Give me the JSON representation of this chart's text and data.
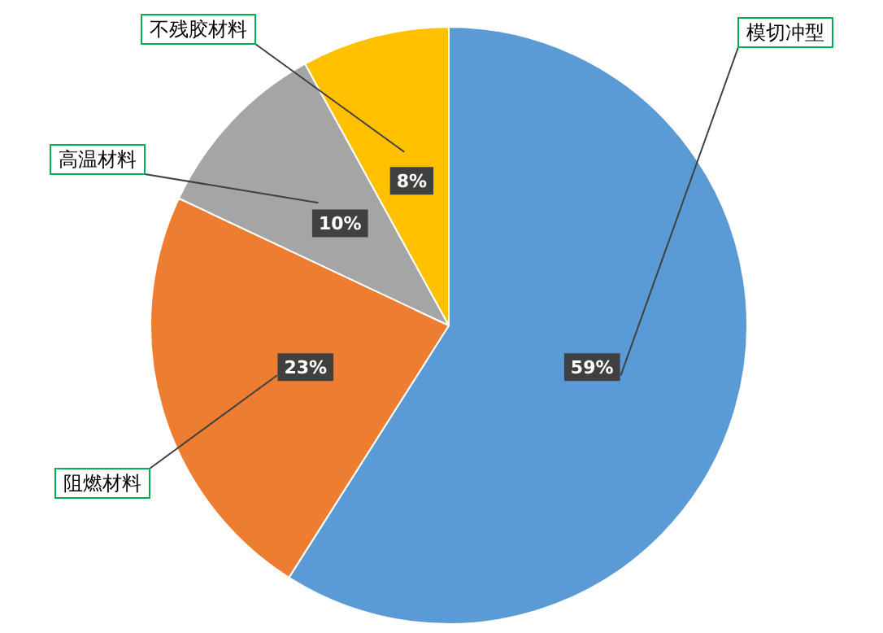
{
  "chart_data": {
    "type": "pie",
    "categories": [
      "模切冲型",
      "阻燃材料",
      "高温材料",
      "不残胶材料"
    ],
    "values": [
      59,
      23,
      10,
      8
    ],
    "colors": [
      "#5b9bd5",
      "#ed7d31",
      "#a5a5a5",
      "#ffc000"
    ],
    "value_labels": [
      "59%",
      "23%",
      "10%",
      "8%"
    ],
    "legend": false
  }
}
